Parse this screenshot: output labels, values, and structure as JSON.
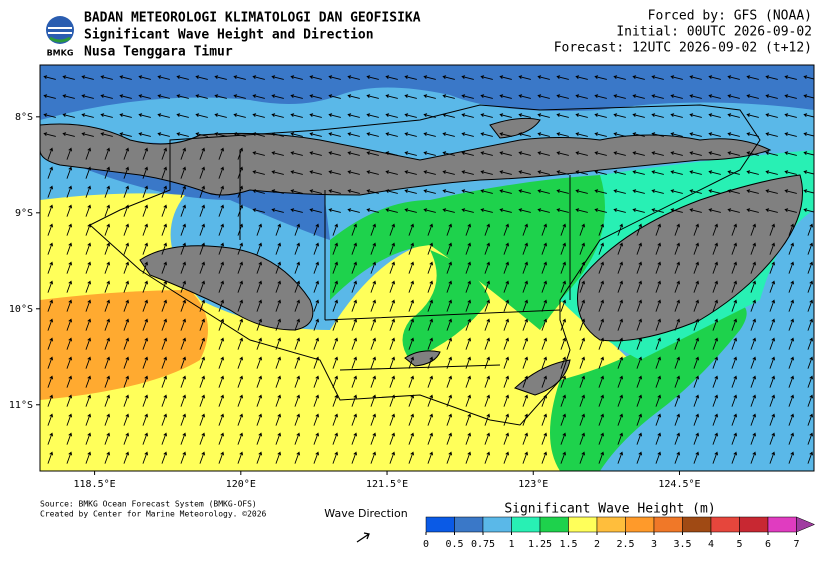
{
  "header": {
    "agency": "BADAN METEOROLOGI KLIMATOLOGI DAN GEOFISIKA",
    "product": "Significant Wave Height and Direction",
    "region": "Nusa Tenggara Timur",
    "logo_text": "BMKG",
    "forced_by": "Forced by: GFS (NOAA)",
    "initial": "Initial: 00UTC 2026-09-02",
    "forecast": "Forecast: 12UTC 2026-09-02 (t+12)"
  },
  "map": {
    "lonlim": [
      117.94,
      125.88
    ],
    "latlim": [
      -7.46,
      -11.69
    ],
    "lon_ticks": [
      {
        "value": 118.5,
        "label": "118.5°E"
      },
      {
        "value": 120,
        "label": "120°E"
      },
      {
        "value": 121.5,
        "label": "121.5°E"
      },
      {
        "value": 123,
        "label": "123°E"
      },
      {
        "value": 124.5,
        "label": "124.5°E"
      }
    ],
    "lat_ticks": [
      {
        "value": -8,
        "label": "8°S"
      },
      {
        "value": -9,
        "label": "9°S"
      },
      {
        "value": -10,
        "label": "10°S"
      },
      {
        "value": -11,
        "label": "11°S"
      }
    ]
  },
  "footer": {
    "source": "Source: BMKG Ocean Forecast System (BMKG-OFS)",
    "credit": "Created by Center for Marine Meteorology. ©2026",
    "wave_direction": "Wave Direction"
  },
  "colorbar": {
    "title": "Significant Wave Height (m)",
    "levels": [
      0,
      0.5,
      0.75,
      1,
      1.25,
      1.5,
      2,
      2.5,
      3,
      3.5,
      4,
      5,
      6,
      7
    ],
    "colors": [
      "#0a5ae6",
      "#3a78c8",
      "#5ab8e8",
      "#28f0b4",
      "#1ed24c",
      "#ffff5a",
      "#ffbe3c",
      "#ff9a2a",
      "#f07828",
      "#a04a14",
      "#e6463c",
      "#c82832",
      "#e03cc0"
    ],
    "extend_color": "#a03ca0"
  }
}
